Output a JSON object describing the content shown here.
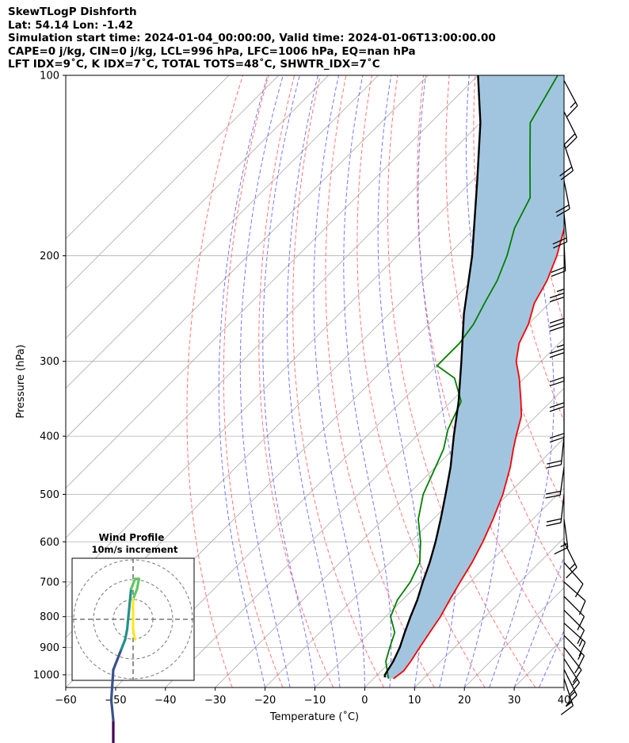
{
  "header": {
    "line1": "SkewTLogP Dishforth",
    "line2": "Lat: 54.14   Lon: -1.42",
    "line3": "Simulation start time: 2024-01-04_00:00:00, Valid time: 2024-01-06T13:00:00.00",
    "line4": "CAPE=0 j/kg, CIN=0 j/kg, LCL=996 hPa, LFC=1006 hPa, EQ=nan hPa",
    "line5": "LFT IDX=9˚C, K IDX=7˚C, TOTAL TOTS=48˚C, SHWTR_IDX=7˚C"
  },
  "chart_data": {
    "type": "line",
    "xlabel": "Temperature (˚C)",
    "ylabel": "Pressure (hPa)",
    "xlim": [
      -60,
      40
    ],
    "ylim": [
      1050,
      100
    ],
    "y_scale": "log",
    "x_ticks": [
      "−60",
      "−50",
      "−40",
      "−30",
      "−20",
      "−10",
      "0",
      "10",
      "20",
      "30",
      "40"
    ],
    "y_ticks": [
      "100",
      "200",
      "300",
      "400",
      "500",
      "600",
      "700",
      "800",
      "900",
      "1000"
    ],
    "grid": true,
    "colors": {
      "temperature": "#ff0000",
      "dewpoint": "#008000",
      "parcel": "#000000",
      "shading": "#a2c5df",
      "dry_adiabats": "#ff6666",
      "moist_adiabats": "#6666ff",
      "isotherms": "#aaaaaa"
    },
    "series": [
      {
        "role": "temperature",
        "points": [
          [
            1015,
            4
          ],
          [
            985,
            4.5
          ],
          [
            950,
            4
          ],
          [
            900,
            3
          ],
          [
            850,
            2
          ],
          [
            800,
            1
          ],
          [
            750,
            -0.5
          ],
          [
            700,
            -2
          ],
          [
            650,
            -3.5
          ],
          [
            600,
            -5.5
          ],
          [
            550,
            -8
          ],
          [
            500,
            -11
          ],
          [
            450,
            -15
          ],
          [
            420,
            -18
          ],
          [
            400,
            -20
          ],
          [
            370,
            -23
          ],
          [
            350,
            -26
          ],
          [
            320,
            -31
          ],
          [
            300,
            -35
          ],
          [
            280,
            -38
          ],
          [
            260,
            -40
          ],
          [
            240,
            -43
          ],
          [
            220,
            -45
          ],
          [
            200,
            -48
          ],
          [
            180,
            -52
          ],
          [
            160,
            -56
          ],
          [
            145,
            -60
          ],
          [
            130,
            -62
          ],
          [
            115,
            -63
          ],
          [
            100,
            -64
          ]
        ]
      },
      {
        "role": "dewpoint",
        "points": [
          [
            1015,
            3
          ],
          [
            950,
            -1
          ],
          [
            900,
            -3
          ],
          [
            850,
            -5
          ],
          [
            800,
            -9
          ],
          [
            750,
            -11
          ],
          [
            700,
            -12
          ],
          [
            650,
            -14
          ],
          [
            600,
            -18
          ],
          [
            550,
            -23
          ],
          [
            500,
            -27
          ],
          [
            450,
            -30
          ],
          [
            420,
            -32
          ],
          [
            390,
            -35
          ],
          [
            350,
            -38
          ],
          [
            320,
            -44
          ],
          [
            305,
            -50
          ],
          [
            280,
            -50
          ],
          [
            260,
            -51
          ],
          [
            240,
            -53
          ],
          [
            220,
            -55
          ],
          [
            200,
            -58
          ],
          [
            180,
            -62
          ],
          [
            160,
            -65
          ],
          [
            140,
            -72
          ],
          [
            120,
            -80
          ],
          [
            100,
            -84
          ]
        ]
      },
      {
        "role": "parcel",
        "points": [
          [
            1010,
            2
          ],
          [
            1000,
            1.5
          ],
          [
            950,
            0.5
          ],
          [
            900,
            -1
          ],
          [
            850,
            -3
          ],
          [
            800,
            -5
          ],
          [
            750,
            -7
          ],
          [
            700,
            -9.5
          ],
          [
            650,
            -12
          ],
          [
            600,
            -15
          ],
          [
            550,
            -18.5
          ],
          [
            500,
            -22.5
          ],
          [
            450,
            -27
          ],
          [
            400,
            -32.5
          ],
          [
            350,
            -38.5
          ],
          [
            300,
            -46
          ],
          [
            250,
            -55
          ],
          [
            200,
            -65
          ],
          [
            150,
            -79
          ],
          [
            120,
            -90
          ],
          [
            100,
            -100
          ]
        ]
      }
    ],
    "wind_barbs": [
      {
        "p": 1015,
        "u": -5,
        "v": 15
      },
      {
        "p": 980,
        "u": -7,
        "v": 14
      },
      {
        "p": 940,
        "u": -9,
        "v": 14
      },
      {
        "p": 900,
        "u": -10,
        "v": 13
      },
      {
        "p": 860,
        "u": -11,
        "v": 11
      },
      {
        "p": 820,
        "u": -10,
        "v": 9
      },
      {
        "p": 780,
        "u": -8,
        "v": 8
      },
      {
        "p": 740,
        "u": -7,
        "v": 7
      },
      {
        "p": 700,
        "u": -9,
        "v": 8
      },
      {
        "p": 650,
        "u": -8,
        "v": 9
      },
      {
        "p": 600,
        "u": -6,
        "v": 12
      },
      {
        "p": 550,
        "u": -2,
        "v": 15
      },
      {
        "p": 500,
        "u": 2,
        "v": 18
      },
      {
        "p": 450,
        "u": 3,
        "v": 22
      },
      {
        "p": 400,
        "u": 2,
        "v": 20
      },
      {
        "p": 360,
        "u": 0,
        "v": 18
      },
      {
        "p": 320,
        "u": 0,
        "v": 18
      },
      {
        "p": 290,
        "u": 0,
        "v": 20
      },
      {
        "p": 260,
        "u": 0,
        "v": 25
      },
      {
        "p": 235,
        "u": 0,
        "v": 28
      },
      {
        "p": 210,
        "u": 0,
        "v": 26
      },
      {
        "p": 190,
        "u": -1,
        "v": 22
      },
      {
        "p": 170,
        "u": -2,
        "v": 20
      },
      {
        "p": 150,
        "u": -4,
        "v": 20
      },
      {
        "p": 130,
        "u": -6,
        "v": 18
      },
      {
        "p": 115,
        "u": -8,
        "v": 16
      },
      {
        "p": 102,
        "u": -8,
        "v": 15
      }
    ],
    "hodograph": {
      "title": "Wind Profile",
      "subtitle": "10m/s increment",
      "points": [
        [
          -5,
          15
        ],
        [
          -7,
          14
        ],
        [
          -9,
          14
        ],
        [
          -10,
          13
        ],
        [
          -10,
          10
        ],
        [
          -11,
          8
        ],
        [
          -10,
          5
        ],
        [
          -8,
          4
        ],
        [
          -6,
          3
        ],
        [
          -4,
          2
        ],
        [
          -3,
          1
        ],
        [
          -2,
          -1
        ],
        [
          -1,
          -3
        ],
        [
          1,
          -4
        ],
        [
          3,
          -4
        ],
        [
          2,
          -3
        ],
        [
          0,
          -2
        ],
        [
          0,
          0
        ],
        [
          0,
          1
        ],
        [
          1,
          2
        ]
      ]
    }
  }
}
